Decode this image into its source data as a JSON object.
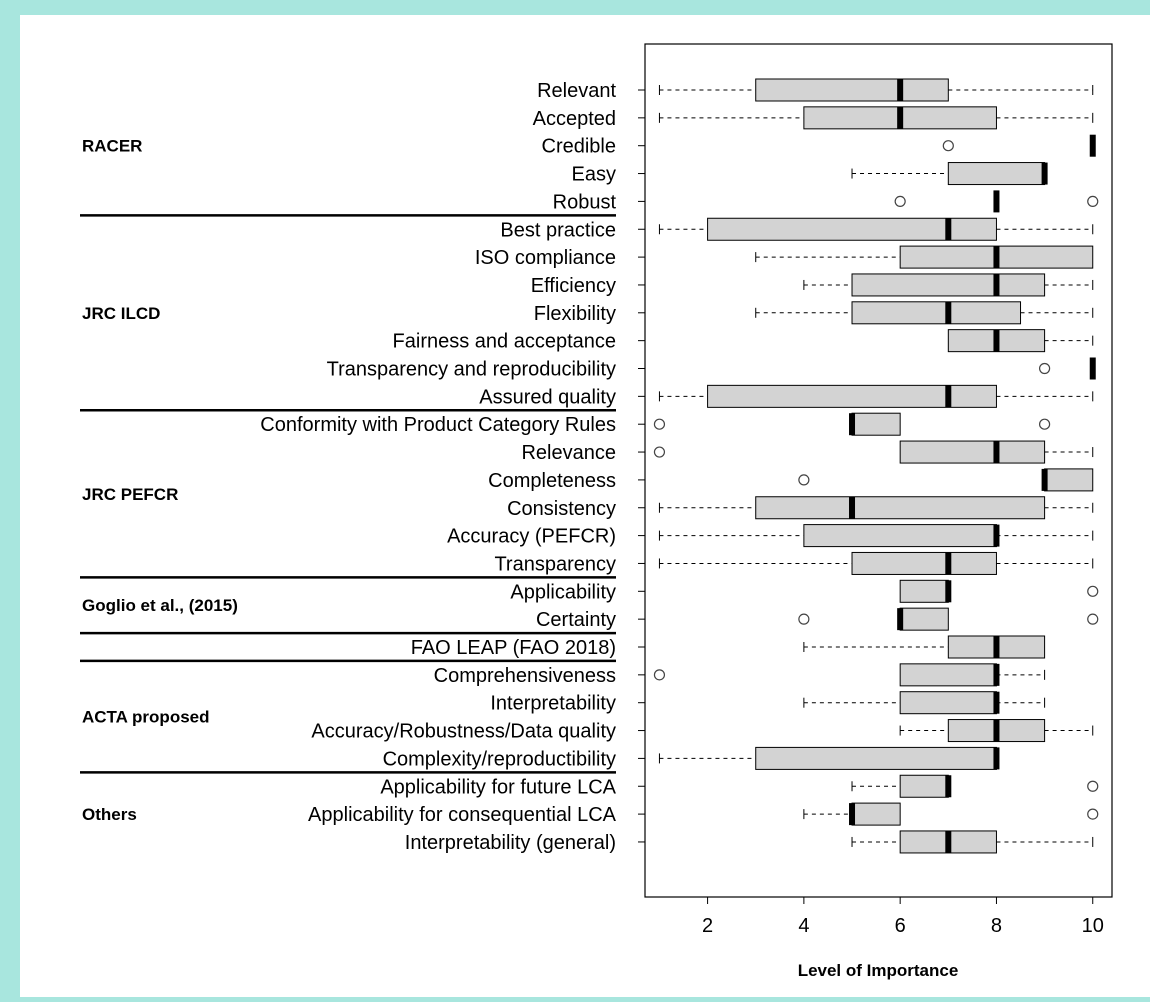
{
  "chart_data": {
    "type": "boxplot",
    "xlabel": "Level of Importance",
    "xlim": [
      0.7,
      10.4
    ],
    "xticks": [
      2,
      4,
      6,
      8,
      10
    ],
    "grid": false,
    "colors": {
      "box_fill": "#d3d3d3",
      "median": "#000000",
      "stroke": "#000000",
      "background": "#a8e6de"
    },
    "groups": [
      {
        "label": "RACER",
        "first": 0,
        "last": 4
      },
      {
        "label": "JRC ILCD",
        "first": 5,
        "last": 11
      },
      {
        "label": "JRC PEFCR",
        "first": 12,
        "last": 17
      },
      {
        "label": "Goglio et al., (2015)",
        "first": 18,
        "last": 19
      },
      {
        "label": "ACTA proposed",
        "first": 21,
        "last": 24
      },
      {
        "label": "Others",
        "first": 25,
        "last": 27
      }
    ],
    "categories": [
      {
        "label": "Relevant",
        "min": 1,
        "q1": 3,
        "median": 6,
        "q3": 7,
        "max": 10,
        "outliers": []
      },
      {
        "label": "Accepted",
        "min": 1,
        "q1": 4,
        "median": 6,
        "q3": 8,
        "max": 10,
        "outliers": []
      },
      {
        "label": "Credible",
        "min": 10,
        "q1": 10,
        "median": 10,
        "q3": 10,
        "max": 10,
        "outliers": [
          7
        ]
      },
      {
        "label": "Easy",
        "min": 5,
        "q1": 7,
        "median": 9,
        "q3": 9,
        "max": 9,
        "outliers": []
      },
      {
        "label": "Robust",
        "min": 8,
        "q1": 8,
        "median": 8,
        "q3": 8,
        "max": 8,
        "outliers": [
          6,
          10
        ]
      },
      {
        "label": "Best practice",
        "min": 1,
        "q1": 2,
        "median": 7,
        "q3": 8,
        "max": 10,
        "outliers": []
      },
      {
        "label": "ISO compliance",
        "min": 3,
        "q1": 6,
        "median": 8,
        "q3": 10,
        "max": 10,
        "outliers": []
      },
      {
        "label": "Efficiency",
        "min": 4,
        "q1": 5,
        "median": 8,
        "q3": 9,
        "max": 10,
        "outliers": []
      },
      {
        "label": "Flexibility",
        "min": 3,
        "q1": 5,
        "median": 7,
        "q3": 8.5,
        "max": 10,
        "outliers": []
      },
      {
        "label": "Fairness and acceptance",
        "min": 7,
        "q1": 7,
        "median": 8,
        "q3": 9,
        "max": 10,
        "outliers": []
      },
      {
        "label": "Transparency and reproducibility",
        "min": 10,
        "q1": 10,
        "median": 10,
        "q3": 10,
        "max": 10,
        "outliers": [
          9
        ]
      },
      {
        "label": "Assured quality",
        "min": 1,
        "q1": 2,
        "median": 7,
        "q3": 8,
        "max": 10,
        "outliers": []
      },
      {
        "label": "Conformity with Product Category Rules",
        "min": 5,
        "q1": 5,
        "median": 5,
        "q3": 6,
        "max": 6,
        "outliers": [
          1,
          9
        ]
      },
      {
        "label": "Relevance",
        "min": 6,
        "q1": 6,
        "median": 8,
        "q3": 9,
        "max": 10,
        "outliers": [
          1
        ]
      },
      {
        "label": "Completeness",
        "min": 9,
        "q1": 9,
        "median": 9,
        "q3": 10,
        "max": 10,
        "outliers": [
          4
        ]
      },
      {
        "label": "Consistency",
        "min": 1,
        "q1": 3,
        "median": 5,
        "q3": 9,
        "max": 10,
        "outliers": []
      },
      {
        "label": "Accuracy (PEFCR)",
        "min": 1,
        "q1": 4,
        "median": 8,
        "q3": 8,
        "max": 10,
        "outliers": []
      },
      {
        "label": "Transparency",
        "min": 1,
        "q1": 5,
        "median": 7,
        "q3": 8,
        "max": 10,
        "outliers": []
      },
      {
        "label": "Applicability",
        "min": 6,
        "q1": 6,
        "median": 7,
        "q3": 7,
        "max": 7,
        "outliers": [
          10
        ]
      },
      {
        "label": "Certainty",
        "min": 6,
        "q1": 6,
        "median": 6,
        "q3": 7,
        "max": 7,
        "outliers": [
          4,
          10
        ]
      },
      {
        "label": "FAO LEAP (FAO 2018)",
        "min": 4,
        "q1": 7,
        "median": 8,
        "q3": 9,
        "max": 9,
        "outliers": []
      },
      {
        "label": "Comprehensiveness",
        "min": 6,
        "q1": 6,
        "median": 8,
        "q3": 8,
        "max": 9,
        "outliers": [
          1
        ]
      },
      {
        "label": "Interpretability",
        "min": 4,
        "q1": 6,
        "median": 8,
        "q3": 8,
        "max": 9,
        "outliers": []
      },
      {
        "label": "Accuracy/Robustness/Data quality",
        "min": 6,
        "q1": 7,
        "median": 8,
        "q3": 9,
        "max": 10,
        "outliers": []
      },
      {
        "label": "Complexity/reproductibility",
        "min": 1,
        "q1": 3,
        "median": 8,
        "q3": 8,
        "max": 8,
        "outliers": []
      },
      {
        "label": "Applicability for future LCA",
        "min": 5,
        "q1": 6,
        "median": 7,
        "q3": 7,
        "max": 7,
        "outliers": [
          10
        ]
      },
      {
        "label": "Applicability for consequential LCA",
        "min": 4,
        "q1": 5,
        "median": 5,
        "q3": 6,
        "max": 6,
        "outliers": [
          10
        ]
      },
      {
        "label": "Interpretability (general)",
        "min": 5,
        "q1": 6,
        "median": 7,
        "q3": 8,
        "max": 10,
        "outliers": []
      }
    ]
  }
}
